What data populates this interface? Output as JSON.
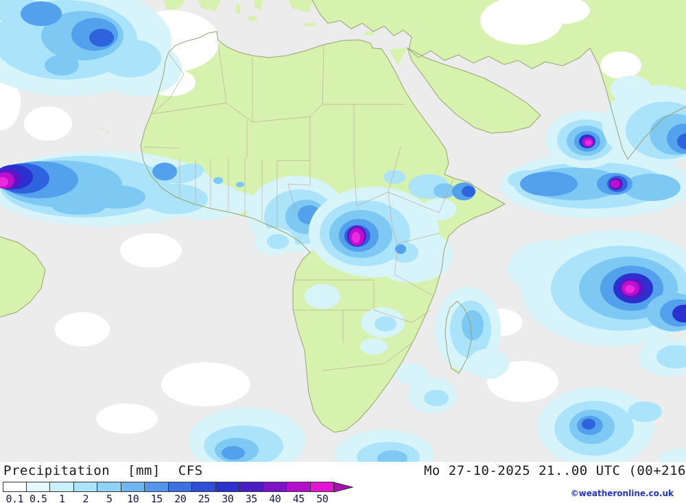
{
  "footer": {
    "title": "Precipitation",
    "unit": "[mm]",
    "model": "CFS",
    "datetime": "Mo 27-10-2025 21..00 UTC (00+216",
    "copyright": "©weatheronline.co.uk"
  },
  "legend": {
    "labels": [
      "0.1",
      "0.5",
      "1",
      "2",
      "5",
      "10",
      "15",
      "20",
      "25",
      "30",
      "35",
      "40",
      "45",
      "50"
    ],
    "colors": [
      "#ffffff",
      "#e4faff",
      "#c9f1fc",
      "#abe4fa",
      "#8fd2f6",
      "#6fb5f0",
      "#5494ea",
      "#3e70e2",
      "#2f4fd9",
      "#2a31cf",
      "#4a1cc6",
      "#7d13c6",
      "#b30fca",
      "#e414d4"
    ],
    "arrow_color": "#a312b0"
  },
  "map": {
    "ocean_color": "#ececec",
    "land_color": "#d6f2ae",
    "region": "Africa"
  }
}
